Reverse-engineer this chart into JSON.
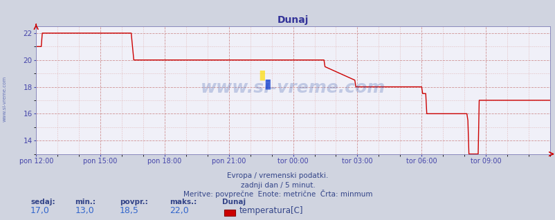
{
  "title": "Dunaj",
  "bg_color": "#d0d4e0",
  "plot_bg_color": "#f0f0f8",
  "line_color": "#cc0000",
  "grid_color_major": "#cc8888",
  "grid_color_minor": "#ddaaaa",
  "ylim_min": 13.0,
  "ylim_max": 22.5,
  "yticks": [
    14,
    16,
    18,
    20,
    22
  ],
  "tick_color": "#4444aa",
  "title_color": "#333399",
  "watermark": "www.si-vreme.com",
  "watermark_color": "#3355aa",
  "left_label": "www.si-vreme.com",
  "footer_lines": [
    "Evropa / vremenski podatki.",
    "zadnji dan / 5 minut.",
    "Meritve: povprečne  Enote: metrične  Črta: minmum"
  ],
  "legend_col1_label": "sedaj:",
  "legend_col2_label": "min.:",
  "legend_col3_label": "povpr.:",
  "legend_col4_label": "maks.:",
  "legend_col5_label": "Dunaj",
  "legend_col1_val": "17,0",
  "legend_col2_val": "13,0",
  "legend_col3_val": "18,5",
  "legend_col4_val": "22,0",
  "legend_series": "temperatura[C]",
  "legend_series_color": "#cc0000",
  "x_tick_labels": [
    "pon 12:00",
    "pon 15:00",
    "pon 18:00",
    "pon 21:00",
    "tor 00:00",
    "tor 03:00",
    "tor 06:00",
    "tor 09:00"
  ],
  "x_tick_norm": [
    0.0,
    0.125,
    0.25,
    0.375,
    0.5,
    0.625,
    0.75,
    0.875
  ],
  "time_points": [
    0.0,
    0.01,
    0.012,
    0.025,
    0.04,
    0.055,
    0.06,
    0.062,
    0.09,
    0.11,
    0.115,
    0.185,
    0.19,
    0.195,
    0.5,
    0.502,
    0.51,
    0.515,
    0.56,
    0.562,
    0.62,
    0.622,
    0.625,
    0.627,
    0.748,
    0.75,
    0.752,
    0.755,
    0.758,
    0.76,
    0.838,
    0.84,
    0.842,
    0.86,
    0.862,
    1.0
  ],
  "temp_values": [
    21.0,
    21.0,
    22.0,
    22.0,
    22.0,
    22.0,
    22.0,
    22.0,
    22.0,
    22.0,
    22.0,
    22.0,
    20.0,
    20.0,
    20.0,
    20.0,
    20.0,
    20.0,
    20.0,
    19.5,
    18.5,
    18.0,
    18.0,
    18.0,
    18.0,
    18.0,
    17.5,
    17.5,
    17.5,
    16.0,
    16.0,
    15.5,
    13.0,
    13.0,
    17.0,
    17.0
  ]
}
